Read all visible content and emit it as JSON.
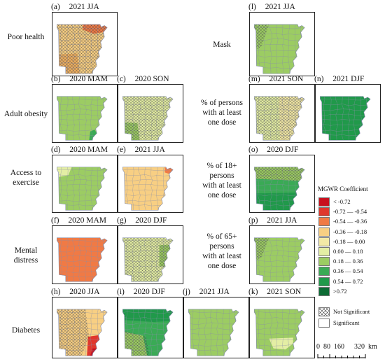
{
  "row_labels": {
    "poor_health": "Poor health",
    "adult_obesity": "Adult obesity",
    "access_to_exercise": [
      "Access to",
      "exercise"
    ],
    "mental_distress": [
      "Mental",
      "distress"
    ],
    "diabetes": "Diabetes"
  },
  "mid_labels": {
    "mask": "Mask",
    "dose": [
      "% of persons",
      "with at least",
      "one dose"
    ],
    "dose18": [
      "% of 18+",
      "persons",
      "with at least",
      "one dose"
    ],
    "dose65": [
      "% of 65+",
      "persons",
      "with at least",
      "one dose"
    ]
  },
  "panels": [
    {
      "id": "a",
      "letter": "(a)",
      "season": "2021 JJA",
      "base": "#f8cf83",
      "hatch": "full",
      "accent": "#f07a45"
    },
    {
      "id": "b",
      "letter": "(b)",
      "season": "2020 MAM",
      "base": "#9ccc63",
      "hatch": "none",
      "accent": "#3aaa55"
    },
    {
      "id": "c",
      "letter": "(c)",
      "season": "2020 SON",
      "base": "#e4eea4",
      "hatch": "full",
      "accent": "#9ccc63"
    },
    {
      "id": "d",
      "letter": "(d)",
      "season": "2020 MAM",
      "base": "#9ccc63",
      "hatch": "none",
      "accent": "#e4eea4"
    },
    {
      "id": "e",
      "letter": "(e)",
      "season": "2021 JJA",
      "base": "#f8cf83",
      "hatch": "none",
      "accent": "#f07a45"
    },
    {
      "id": "f",
      "letter": "(f)",
      "season": "2020 MAM",
      "base": "#f07a45",
      "hatch": "none",
      "accent": "#f07a45"
    },
    {
      "id": "g",
      "letter": "(g)",
      "season": "2020 DJF",
      "base": "#e4eea4",
      "hatch": "full",
      "accent": "#9ccc63"
    },
    {
      "id": "h",
      "letter": "(h)",
      "season": "2020 JJA",
      "base": "#f8cf83",
      "hatch": "west",
      "accent": "#e0372d"
    },
    {
      "id": "i",
      "letter": "(i)",
      "season": "2020 DJF",
      "base": "#3aaa55",
      "hatch": "southwest",
      "accent": "#9ccc63"
    },
    {
      "id": "j",
      "letter": "(j)",
      "season": "2021 JJA",
      "base": "#9ccc63",
      "hatch": "none",
      "accent": "#9ccc63"
    },
    {
      "id": "k",
      "letter": "(k)",
      "season": "2021 SON",
      "base": "#9ccc63",
      "hatch": "none",
      "accent": "#e4eea4"
    },
    {
      "id": "l",
      "letter": "(l)",
      "season": "2021 JJA",
      "base": "#9ccc63",
      "hatch": "northwest",
      "accent": "#9ccc63"
    },
    {
      "id": "m",
      "letter": "(m)",
      "season": "2021 SON",
      "base": "#e4eea4",
      "hatch": "full",
      "accent": "#f3e9a6"
    },
    {
      "id": "n",
      "letter": "(n)",
      "season": "2021 DJF",
      "base": "#20994a",
      "hatch": "none",
      "accent": "#20994a"
    },
    {
      "id": "o",
      "letter": "(o)",
      "season": "2020 DJF",
      "base": "#3aaa55",
      "hatch": "north",
      "accent": "#9ccc63"
    },
    {
      "id": "p",
      "letter": "(p)",
      "season": "2021 JJA",
      "base": "#9ccc63",
      "hatch": "northwest",
      "accent": "#9ccc63"
    }
  ],
  "legend": {
    "title": "MGWR Coefficient",
    "classes": [
      {
        "label": "< -0.72",
        "color": "#c8101e"
      },
      {
        "label": "-0.72 — -0.54",
        "color": "#e0372d"
      },
      {
        "label": "-0.54 — -0.36",
        "color": "#f07a45"
      },
      {
        "label": "-0.36 — -0.18",
        "color": "#f8cf83"
      },
      {
        "label": "-0.18 — 0.00",
        "color": "#f3e9a6"
      },
      {
        "label": "0.00 — 0.18",
        "color": "#e4eea4"
      },
      {
        "label": "0.18 — 0.36",
        "color": "#9ccc63"
      },
      {
        "label": "0.36 — 0.54",
        "color": "#3aaa55"
      },
      {
        "label": "0.54 — 0.72",
        "color": "#20994a"
      },
      {
        "label": ">0.72",
        "color": "#0c6b34"
      }
    ],
    "not_significant": "Not Significant",
    "significant": "Significant"
  },
  "scale_bar": {
    "ticks": [
      "0",
      "80",
      "160",
      "320"
    ],
    "unit": "km"
  }
}
